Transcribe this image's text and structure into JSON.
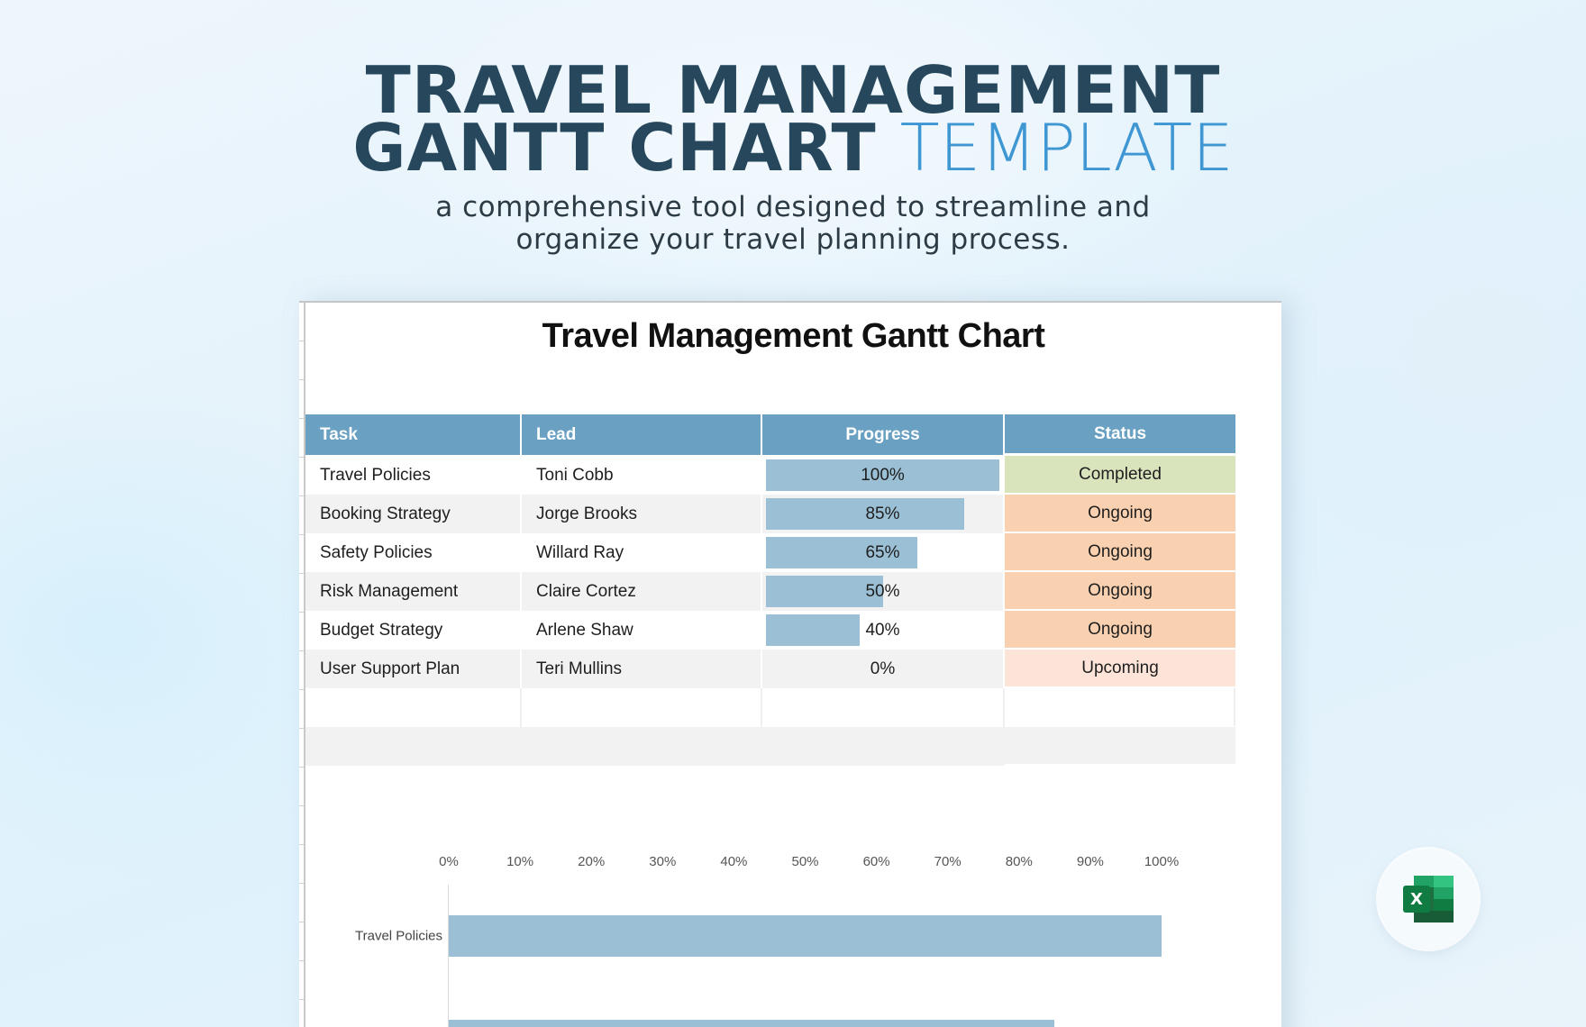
{
  "hero": {
    "line1": "TRAVEL MANAGEMENT",
    "line2_bold": "GANTT CHART",
    "line2_accent": "TEMPLATE",
    "subtitle_line1": "a comprehensive tool designed to streamline and",
    "subtitle_line2": "organize your travel planning process.",
    "colors": {
      "title": "#26475c",
      "accent": "#3e96d3"
    }
  },
  "sheet": {
    "title": "Travel Management Gantt Chart",
    "columns": [
      "Task",
      "Lead",
      "Progress",
      "Status"
    ],
    "rows": [
      {
        "task": "Travel Policies",
        "lead": "Toni Cobb",
        "progress": 100,
        "progress_label": "100%",
        "status": "Completed"
      },
      {
        "task": "Booking Strategy",
        "lead": "Jorge Brooks",
        "progress": 85,
        "progress_label": "85%",
        "status": "Ongoing"
      },
      {
        "task": "Safety Policies",
        "lead": "Willard Ray",
        "progress": 65,
        "progress_label": "65%",
        "status": "Ongoing"
      },
      {
        "task": "Risk Management",
        "lead": "Claire Cortez",
        "progress": 50,
        "progress_label": "50%",
        "status": "Ongoing"
      },
      {
        "task": "Budget Strategy",
        "lead": "Arlene Shaw",
        "progress": 40,
        "progress_label": "40%",
        "status": "Ongoing"
      },
      {
        "task": "User Support Plan",
        "lead": "Teri Mullins",
        "progress": 0,
        "progress_label": "0%",
        "status": "Upcoming"
      }
    ],
    "status_colors": {
      "Completed": "#d9e4bd",
      "Ongoing": "#fad1b0",
      "Upcoming": "#fde4d8"
    },
    "header_color": "#6aa0c2",
    "bar_color": "#9bc0d5"
  },
  "chart_data": {
    "type": "bar",
    "orientation": "horizontal",
    "title": "",
    "x_ticks": [
      "0%",
      "10%",
      "20%",
      "30%",
      "40%",
      "50%",
      "60%",
      "70%",
      "80%",
      "90%",
      "100%"
    ],
    "xlim": [
      0,
      100
    ],
    "categories": [
      "Travel Policies",
      "Booking Strategy"
    ],
    "values": [
      100,
      85
    ],
    "visible_labels": [
      "Travel Policies"
    ],
    "grid": false
  },
  "badge": {
    "icon": "excel-icon",
    "label": "X"
  }
}
